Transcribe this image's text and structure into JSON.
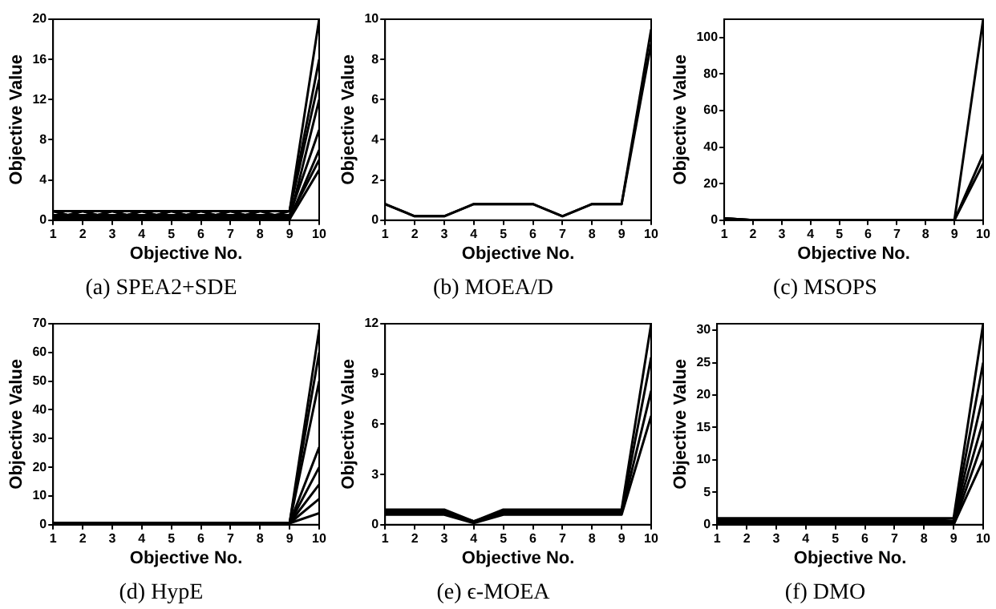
{
  "chart_data": [
    {
      "type": "line",
      "title": "(a) SPEA2+SDE",
      "xlabel": "Objective No.",
      "ylabel": "Objective Value",
      "x": [
        1,
        2,
        3,
        4,
        5,
        6,
        7,
        8,
        9,
        10
      ],
      "xlim": [
        1,
        10
      ],
      "xticks": [
        1,
        2,
        3,
        4,
        5,
        6,
        7,
        8,
        9,
        10
      ],
      "ylim": [
        0,
        20
      ],
      "yticks": [
        0,
        4,
        8,
        12,
        16,
        20
      ],
      "series": [
        {
          "color": "#000000",
          "values": [
            0.9,
            0.9,
            0.9,
            0.9,
            0.9,
            0.9,
            0.9,
            0.9,
            0.9,
            20
          ]
        },
        {
          "color": "#000000",
          "values": [
            0.1,
            0.1,
            0.1,
            0.1,
            0.1,
            0.1,
            0.1,
            0.1,
            0.1,
            5
          ]
        },
        {
          "color": "#000000",
          "values": [
            0.9,
            0.1,
            0.9,
            0.1,
            0.9,
            0.1,
            0.9,
            0.1,
            0.9,
            16
          ]
        },
        {
          "color": "#000000",
          "values": [
            0.1,
            0.9,
            0.1,
            0.9,
            0.1,
            0.9,
            0.1,
            0.9,
            0.1,
            12
          ]
        },
        {
          "color": "#000000",
          "values": [
            0.5,
            0.5,
            0.5,
            0.5,
            0.5,
            0.5,
            0.5,
            0.5,
            0.5,
            9
          ]
        },
        {
          "color": "#000000",
          "values": [
            0.9,
            0.1,
            0.9,
            0.1,
            0.9,
            0.1,
            0.9,
            0.1,
            0.1,
            7
          ]
        },
        {
          "color": "#000000",
          "values": [
            0.1,
            0.9,
            0.1,
            0.9,
            0.1,
            0.9,
            0.1,
            0.9,
            0.9,
            14
          ]
        },
        {
          "color": "#000000",
          "values": [
            0.3,
            0.3,
            0.3,
            0.3,
            0.3,
            0.3,
            0.3,
            0.3,
            0.3,
            6
          ]
        }
      ]
    },
    {
      "type": "line",
      "title": "(b) MOEA/D",
      "xlabel": "Objective No.",
      "ylabel": "Objective Value",
      "x": [
        1,
        2,
        3,
        4,
        5,
        6,
        7,
        8,
        9,
        10
      ],
      "xlim": [
        1,
        10
      ],
      "xticks": [
        1,
        2,
        3,
        4,
        5,
        6,
        7,
        8,
        9,
        10
      ],
      "ylim": [
        0,
        10
      ],
      "yticks": [
        0,
        2,
        4,
        6,
        8,
        10
      ],
      "series": [
        {
          "color": "#000000",
          "values": [
            0.8,
            0.2,
            0.2,
            0.8,
            0.8,
            0.8,
            0.2,
            0.8,
            0.8,
            9.5
          ]
        },
        {
          "color": "#000000",
          "values": [
            0.8,
            0.2,
            0.2,
            0.8,
            0.8,
            0.8,
            0.2,
            0.8,
            0.8,
            8.8
          ]
        }
      ]
    },
    {
      "type": "line",
      "title": "(c) MSOPS",
      "xlabel": "Objective No.",
      "ylabel": "Objective Value",
      "x": [
        1,
        2,
        3,
        4,
        5,
        6,
        7,
        8,
        9,
        10
      ],
      "xlim": [
        1,
        10
      ],
      "xticks": [
        1,
        2,
        3,
        4,
        5,
        6,
        7,
        8,
        9,
        10
      ],
      "ylim": [
        0,
        110
      ],
      "yticks": [
        0,
        20,
        40,
        60,
        80,
        100
      ],
      "series": [
        {
          "color": "#000000",
          "values": [
            1,
            0,
            0,
            0,
            0,
            0,
            0,
            0,
            0,
            110
          ]
        },
        {
          "color": "#000000",
          "values": [
            1,
            0,
            0,
            0,
            0,
            0,
            0,
            0,
            0,
            36
          ]
        },
        {
          "color": "#000000",
          "values": [
            1,
            0,
            0,
            0,
            0,
            0,
            0,
            0,
            0,
            31
          ]
        }
      ]
    },
    {
      "type": "line",
      "title": "(d) HypE",
      "xlabel": "Objective No.",
      "ylabel": "Objective Value",
      "x": [
        1,
        2,
        3,
        4,
        5,
        6,
        7,
        8,
        9,
        10
      ],
      "xlim": [
        1,
        10
      ],
      "xticks": [
        1,
        2,
        3,
        4,
        5,
        6,
        7,
        8,
        9,
        10
      ],
      "ylim": [
        0,
        70
      ],
      "yticks": [
        0,
        10,
        20,
        30,
        40,
        50,
        60,
        70
      ],
      "series": [
        {
          "color": "#000000",
          "values": [
            0.5,
            0.5,
            0.5,
            0.5,
            0.5,
            0.5,
            0.5,
            0.5,
            0.5,
            68
          ]
        },
        {
          "color": "#000000",
          "values": [
            0.5,
            0.5,
            0.5,
            0.5,
            0.5,
            0.5,
            0.5,
            0.5,
            0.5,
            60
          ]
        },
        {
          "color": "#000000",
          "values": [
            0.5,
            0.5,
            0.5,
            0.5,
            0.5,
            0.5,
            0.5,
            0.5,
            0.5,
            50
          ]
        },
        {
          "color": "#000000",
          "values": [
            0.5,
            0.5,
            0.5,
            0.5,
            0.5,
            0.5,
            0.5,
            0.5,
            0.5,
            27
          ]
        },
        {
          "color": "#000000",
          "values": [
            0.5,
            0.5,
            0.5,
            0.5,
            0.5,
            0.5,
            0.5,
            0.5,
            0.5,
            20
          ]
        },
        {
          "color": "#000000",
          "values": [
            0.5,
            0.5,
            0.5,
            0.5,
            0.5,
            0.5,
            0.5,
            0.5,
            0.5,
            14
          ]
        },
        {
          "color": "#000000",
          "values": [
            0.5,
            0.5,
            0.5,
            0.5,
            0.5,
            0.5,
            0.5,
            0.5,
            0.5,
            9
          ]
        },
        {
          "color": "#000000",
          "values": [
            0.5,
            0.5,
            0.5,
            0.5,
            0.5,
            0.5,
            0.5,
            0.5,
            0.5,
            4
          ]
        }
      ]
    },
    {
      "type": "line",
      "title": "(e) ϵ-MOEA",
      "xlabel": "Objective No.",
      "ylabel": "Objective Value",
      "x": [
        1,
        2,
        3,
        4,
        5,
        6,
        7,
        8,
        9,
        10
      ],
      "xlim": [
        1,
        10
      ],
      "xticks": [
        1,
        2,
        3,
        4,
        5,
        6,
        7,
        8,
        9,
        10
      ],
      "ylim": [
        0,
        12
      ],
      "yticks": [
        0,
        3,
        6,
        9,
        12
      ],
      "series": [
        {
          "color": "#000000",
          "values": [
            0.9,
            0.9,
            0.9,
            0.2,
            0.9,
            0.9,
            0.9,
            0.9,
            0.9,
            12
          ]
        },
        {
          "color": "#000000",
          "values": [
            0.8,
            0.8,
            0.8,
            0.2,
            0.8,
            0.8,
            0.8,
            0.8,
            0.8,
            10
          ]
        },
        {
          "color": "#000000",
          "values": [
            0.7,
            0.7,
            0.7,
            0.2,
            0.7,
            0.7,
            0.7,
            0.7,
            0.7,
            8
          ]
        },
        {
          "color": "#000000",
          "values": [
            0.6,
            0.6,
            0.6,
            0.1,
            0.6,
            0.6,
            0.6,
            0.6,
            0.6,
            6.5
          ]
        }
      ]
    },
    {
      "type": "line",
      "title": "(f) DMO",
      "xlabel": "Objective No.",
      "ylabel": "Objective Value",
      "x": [
        1,
        2,
        3,
        4,
        5,
        6,
        7,
        8,
        9,
        10
      ],
      "xlim": [
        1,
        10
      ],
      "xticks": [
        1,
        2,
        3,
        4,
        5,
        6,
        7,
        8,
        9,
        10
      ],
      "ylim": [
        0,
        31
      ],
      "yticks": [
        0,
        5,
        10,
        15,
        20,
        25,
        30
      ],
      "series": [
        {
          "color": "#000000",
          "values": [
            1,
            1,
            1,
            1,
            1,
            1,
            1,
            1,
            1,
            31
          ]
        },
        {
          "color": "#000000",
          "values": [
            0.8,
            0.8,
            0.8,
            0.8,
            0.8,
            0.8,
            0.8,
            0.8,
            0.6,
            25
          ]
        },
        {
          "color": "#000000",
          "values": [
            0.6,
            0.6,
            0.6,
            0.6,
            0.6,
            0.6,
            0.6,
            0.6,
            0.4,
            20
          ]
        },
        {
          "color": "#000000",
          "values": [
            0.4,
            0.4,
            0.4,
            0.4,
            0.4,
            0.4,
            0.4,
            0.4,
            0.2,
            16
          ]
        },
        {
          "color": "#000000",
          "values": [
            0.2,
            0.2,
            0.2,
            0.2,
            0.2,
            0.2,
            0.2,
            0.2,
            0,
            13
          ]
        },
        {
          "color": "#000000",
          "values": [
            0,
            0,
            0,
            0,
            0,
            0,
            0,
            0,
            0,
            10
          ]
        }
      ]
    }
  ]
}
